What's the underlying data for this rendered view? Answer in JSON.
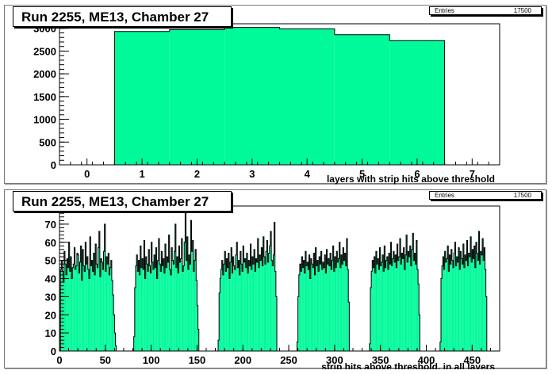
{
  "pads": [
    {
      "title": "Run 2255, ME13, Chamber 27",
      "stats": {
        "label": "Entries",
        "value": "17500"
      }
    },
    {
      "title": "Run 2255, ME13, Chamber 27",
      "stats": {
        "label": "Entries",
        "value": "17500"
      }
    }
  ],
  "colors": {
    "fill": "#00fa9a",
    "line": "#000000",
    "frame": "#000000"
  },
  "chart_data": [
    {
      "type": "bar",
      "title": "Run 2255, ME13, Chamber 27",
      "xlabel": "layers with strip hits above threshold",
      "ylabel": "",
      "xlim": [
        -0.5,
        7.5
      ],
      "ylim": [
        0,
        3100
      ],
      "xticks": [
        0,
        1,
        2,
        3,
        4,
        5,
        6,
        7
      ],
      "yticks": [
        0,
        500,
        1000,
        1500,
        2000,
        2500,
        3000
      ],
      "bin_edges": [
        0.5,
        1.5,
        2.5,
        3.5,
        4.5,
        5.5,
        6.5
      ],
      "values": [
        2930,
        2970,
        3020,
        2990,
        2860,
        2730
      ],
      "entries": 17500
    },
    {
      "type": "bar",
      "title": "Run 2255, ME13, Chamber 27",
      "xlabel": "strip hits above threshold, in all layers",
      "ylabel": "",
      "xlim": [
        0,
        480
      ],
      "ylim": [
        0,
        80
      ],
      "xticks": [
        0,
        50,
        100,
        150,
        200,
        250,
        300,
        350,
        400,
        450
      ],
      "yticks": [
        0,
        10,
        20,
        30,
        40,
        50,
        60,
        70,
        80
      ],
      "bin_width": 1,
      "x_start": 0,
      "values": [
        0,
        45,
        50,
        44,
        38,
        55,
        48,
        42,
        51,
        46,
        60,
        44,
        52,
        40,
        46,
        48,
        57,
        45,
        47,
        54,
        53,
        43,
        49,
        58,
        39,
        56,
        47,
        44,
        60,
        48,
        52,
        45,
        40,
        63,
        47,
        50,
        44,
        54,
        42,
        59,
        48,
        46,
        57,
        66,
        41,
        51,
        49,
        45,
        55,
        70,
        44,
        52,
        48,
        54,
        42,
        46,
        50,
        39,
        31,
        20,
        10,
        3,
        0,
        0,
        0,
        0,
        0,
        0,
        0,
        0,
        0,
        0,
        0,
        0,
        0,
        0,
        0,
        0,
        0,
        0,
        0,
        8,
        35,
        47,
        53,
        44,
        50,
        42,
        58,
        46,
        51,
        45,
        61,
        40,
        52,
        48,
        44,
        56,
        47,
        43,
        60,
        49,
        45,
        53,
        46,
        57,
        40,
        50,
        62,
        48,
        44,
        55,
        47,
        51,
        43,
        59,
        46,
        52,
        49,
        64,
        45,
        42,
        57,
        50,
        48,
        55,
        70,
        46,
        52,
        43,
        58,
        49,
        51,
        62,
        44,
        47,
        60,
        76,
        50,
        63,
        45,
        53,
        48,
        72,
        55,
        61,
        44,
        50,
        56,
        39,
        25,
        12,
        0,
        0,
        0,
        0,
        0,
        0,
        0,
        0,
        0,
        0,
        0,
        0,
        0,
        0,
        0,
        0,
        0,
        0,
        0,
        0,
        0,
        6,
        32,
        40,
        45,
        50,
        42,
        48,
        55,
        44,
        51,
        46,
        54,
        40,
        49,
        57,
        43,
        52,
        47,
        45,
        53,
        60,
        46,
        50,
        42,
        55,
        48,
        44,
        58,
        49,
        51,
        46,
        54,
        43,
        50,
        47,
        59,
        45,
        52,
        48,
        56,
        44,
        51,
        49,
        62,
        46,
        53,
        50,
        57,
        47,
        63,
        52,
        48,
        55,
        61,
        49,
        54,
        58,
        66,
        50,
        47,
        53,
        71,
        44,
        30,
        0,
        0,
        0,
        0,
        0,
        0,
        0,
        0,
        0,
        0,
        0,
        0,
        0,
        0,
        0,
        0,
        0,
        0,
        0,
        0,
        0,
        0,
        5,
        30,
        42,
        48,
        44,
        52,
        46,
        50,
        43,
        55,
        47,
        49,
        45,
        53,
        40,
        51,
        48,
        46,
        54,
        42,
        57,
        47,
        50,
        44,
        52,
        48,
        55,
        45,
        49,
        46,
        53,
        43,
        56,
        48,
        51,
        47,
        54,
        45,
        50,
        58,
        44,
        52,
        46,
        55,
        49,
        51,
        60,
        46,
        53,
        48,
        57,
        50,
        54,
        47,
        62,
        45,
        27,
        0,
        0,
        0,
        0,
        0,
        0,
        0,
        0,
        0,
        0,
        0,
        0,
        0,
        0,
        0,
        0,
        0,
        0,
        0,
        0,
        0,
        0,
        4,
        35,
        44,
        50,
        46,
        52,
        43,
        55,
        48,
        51,
        45,
        57,
        47,
        49,
        53,
        44,
        58,
        46,
        50,
        52,
        45,
        54,
        48,
        60,
        47,
        51,
        55,
        49,
        53,
        46,
        59,
        50,
        52,
        62,
        48,
        54,
        51,
        57,
        45,
        53,
        64,
        49,
        55,
        52,
        58,
        47,
        56,
        65,
        50,
        54,
        48,
        61,
        45,
        37,
        20,
        0,
        0,
        0,
        0,
        0,
        0,
        0,
        0,
        0,
        0,
        0,
        0,
        0,
        0,
        0,
        0,
        0,
        0,
        0,
        0,
        0,
        0,
        5,
        40,
        47,
        52,
        45,
        55,
        49,
        51,
        58,
        44,
        53,
        48,
        56,
        50,
        46,
        54,
        60,
        47,
        52,
        49,
        57,
        45,
        55,
        51,
        48,
        59,
        46,
        53,
        50,
        61,
        47,
        54,
        52,
        63,
        49,
        56,
        51,
        58,
        46,
        60,
        54,
        50,
        66,
        48,
        55,
        53,
        62,
        50,
        57,
        45,
        30,
        0,
        0,
        0
      ]
    }
  ]
}
